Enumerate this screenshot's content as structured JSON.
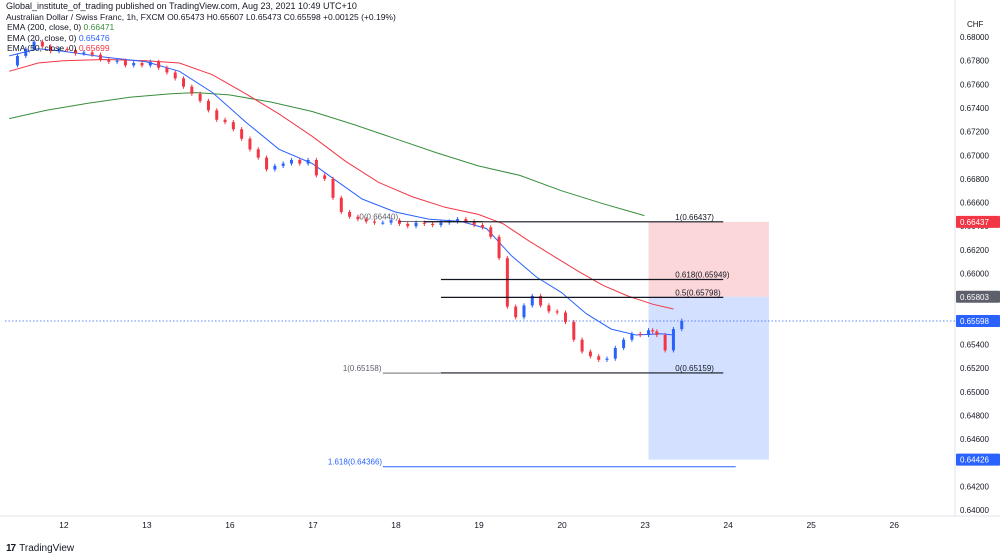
{
  "header": {
    "published_line": "Global_institute_of_trading published on TradingView.com, Aug 23, 2021 10:49 UTC+10",
    "symbol_line": "Australian Dollar / Swiss Franc, 1h, FXCM  O0.65473  H0.65607  L0.65473  C0.65598  +0.00125 (+0.19%)"
  },
  "legend": [
    {
      "label": "EMA (200, close, 0)",
      "value": "0.66471",
      "color": "#388e3c"
    },
    {
      "label": "EMA (20, close, 0)",
      "value": "0.65476",
      "color": "#2962ff"
    },
    {
      "label": "EMA (50, close, 0)",
      "value": "0.65699",
      "color": "#f23645"
    }
  ],
  "footer": {
    "brand": "TradingView"
  },
  "chart_data": {
    "type": "candlestick",
    "currency": "CHF",
    "ylim": [
      0.64,
      0.681
    ],
    "y_ticks": [
      "0.68000",
      "0.67800",
      "0.67600",
      "0.67400",
      "0.67200",
      "0.67000",
      "0.66800",
      "0.66600",
      "0.66400",
      "0.66200",
      "0.66000",
      "0.65800",
      "0.65600",
      "0.65400",
      "0.65200",
      "0.65000",
      "0.64800",
      "0.64600",
      "0.64400",
      "0.64200",
      "0.64000"
    ],
    "x_ticks": [
      {
        "label": "12",
        "x": 12
      },
      {
        "label": "13",
        "x": 13
      },
      {
        "label": "16",
        "x": 14
      },
      {
        "label": "17",
        "x": 15
      },
      {
        "label": "18",
        "x": 16
      },
      {
        "label": "19",
        "x": 17
      },
      {
        "label": "20",
        "x": 18
      },
      {
        "label": "23",
        "x": 19
      },
      {
        "label": "24",
        "x": 20
      },
      {
        "label": "25",
        "x": 21
      },
      {
        "label": "26",
        "x": 22
      }
    ],
    "xlim": [
      11.3,
      22.5
    ],
    "close_series": [
      [
        11.35,
        0.6776
      ],
      [
        11.45,
        0.6784
      ],
      [
        11.55,
        0.679
      ],
      [
        11.65,
        0.6796
      ],
      [
        11.75,
        0.6792
      ],
      [
        11.85,
        0.6788
      ],
      [
        11.95,
        0.679
      ],
      [
        12.05,
        0.6789
      ],
      [
        12.15,
        0.6786
      ],
      [
        12.25,
        0.6787
      ],
      [
        12.35,
        0.6785
      ],
      [
        12.45,
        0.6781
      ],
      [
        12.55,
        0.6779
      ],
      [
        12.65,
        0.678
      ],
      [
        12.75,
        0.6776
      ],
      [
        12.85,
        0.6778
      ],
      [
        12.95,
        0.6776
      ],
      [
        13.05,
        0.6779
      ],
      [
        13.15,
        0.6774
      ],
      [
        13.25,
        0.677
      ],
      [
        13.35,
        0.6765
      ],
      [
        13.45,
        0.6758
      ],
      [
        13.55,
        0.6752
      ],
      [
        13.65,
        0.6746
      ],
      [
        13.75,
        0.6738
      ],
      [
        13.85,
        0.673
      ],
      [
        13.95,
        0.6728
      ],
      [
        14.05,
        0.6722
      ],
      [
        14.15,
        0.6714
      ],
      [
        14.25,
        0.6705
      ],
      [
        14.35,
        0.6698
      ],
      [
        14.45,
        0.6688
      ],
      [
        14.55,
        0.6691
      ],
      [
        14.65,
        0.6693
      ],
      [
        14.75,
        0.6696
      ],
      [
        14.85,
        0.6693
      ],
      [
        14.95,
        0.6696
      ],
      [
        15.05,
        0.6683
      ],
      [
        15.15,
        0.668
      ],
      [
        15.25,
        0.6664
      ],
      [
        15.35,
        0.6652
      ],
      [
        15.45,
        0.6648
      ],
      [
        15.55,
        0.6646
      ],
      [
        15.65,
        0.6644
      ],
      [
        15.75,
        0.6643
      ],
      [
        15.85,
        0.6643
      ],
      [
        15.95,
        0.6645
      ],
      [
        16.05,
        0.6642
      ],
      [
        16.15,
        0.664
      ],
      [
        16.25,
        0.6643
      ],
      [
        16.35,
        0.6642
      ],
      [
        16.45,
        0.6641
      ],
      [
        16.55,
        0.6643
      ],
      [
        16.65,
        0.6644
      ],
      [
        16.75,
        0.6646
      ],
      [
        16.85,
        0.6644
      ],
      [
        16.95,
        0.6641
      ],
      [
        17.05,
        0.6639
      ],
      [
        17.15,
        0.6631
      ],
      [
        17.25,
        0.6613
      ],
      [
        17.35,
        0.6572
      ],
      [
        17.45,
        0.6563
      ],
      [
        17.55,
        0.6573
      ],
      [
        17.65,
        0.6581
      ],
      [
        17.75,
        0.6573
      ],
      [
        17.85,
        0.6568
      ],
      [
        17.95,
        0.6567
      ],
      [
        18.05,
        0.6559
      ],
      [
        18.15,
        0.6544
      ],
      [
        18.25,
        0.6534
      ],
      [
        18.35,
        0.653
      ],
      [
        18.45,
        0.6527
      ],
      [
        18.55,
        0.6528
      ],
      [
        18.65,
        0.6537
      ],
      [
        18.75,
        0.6544
      ],
      [
        18.85,
        0.6549
      ],
      [
        18.95,
        0.6548
      ],
      [
        19.05,
        0.6552
      ],
      [
        19.1,
        0.6551
      ],
      [
        19.15,
        0.6548
      ],
      [
        19.25,
        0.6535
      ],
      [
        19.35,
        0.6553
      ],
      [
        19.45,
        0.656
      ]
    ],
    "ema20_series": [
      [
        11.35,
        0.6784
      ],
      [
        11.7,
        0.679
      ],
      [
        12.0,
        0.6788
      ],
      [
        12.5,
        0.6783
      ],
      [
        13.0,
        0.6779
      ],
      [
        13.4,
        0.6771
      ],
      [
        13.8,
        0.6753
      ],
      [
        14.2,
        0.6728
      ],
      [
        14.6,
        0.6705
      ],
      [
        15.0,
        0.6693
      ],
      [
        15.3,
        0.6678
      ],
      [
        15.6,
        0.6663
      ],
      [
        16.0,
        0.6652
      ],
      [
        16.4,
        0.6646
      ],
      [
        16.8,
        0.6644
      ],
      [
        17.1,
        0.6638
      ],
      [
        17.4,
        0.6615
      ],
      [
        17.7,
        0.6597
      ],
      [
        18.0,
        0.6584
      ],
      [
        18.3,
        0.6566
      ],
      [
        18.6,
        0.6553
      ],
      [
        18.9,
        0.6548
      ],
      [
        19.2,
        0.6549
      ],
      [
        19.35,
        0.6548
      ]
    ],
    "ema50_series": [
      [
        11.35,
        0.6771
      ],
      [
        11.7,
        0.6778
      ],
      [
        12.0,
        0.678
      ],
      [
        12.5,
        0.6781
      ],
      [
        13.0,
        0.678
      ],
      [
        13.4,
        0.6778
      ],
      [
        13.8,
        0.6768
      ],
      [
        14.2,
        0.6752
      ],
      [
        14.6,
        0.6735
      ],
      [
        15.0,
        0.6716
      ],
      [
        15.4,
        0.6695
      ],
      [
        15.8,
        0.6677
      ],
      [
        16.2,
        0.6665
      ],
      [
        16.6,
        0.6656
      ],
      [
        17.0,
        0.665
      ],
      [
        17.3,
        0.6642
      ],
      [
        17.6,
        0.6628
      ],
      [
        17.9,
        0.6615
      ],
      [
        18.2,
        0.6602
      ],
      [
        18.5,
        0.659
      ],
      [
        18.8,
        0.6581
      ],
      [
        19.1,
        0.6574
      ],
      [
        19.35,
        0.657
      ]
    ],
    "ema200_series": [
      [
        11.35,
        0.6731
      ],
      [
        11.8,
        0.6738
      ],
      [
        12.3,
        0.6744
      ],
      [
        12.8,
        0.6749
      ],
      [
        13.3,
        0.6752
      ],
      [
        13.6,
        0.6753
      ],
      [
        14.0,
        0.6751
      ],
      [
        14.5,
        0.6745
      ],
      [
        15.0,
        0.6737
      ],
      [
        15.5,
        0.6726
      ],
      [
        16.0,
        0.6714
      ],
      [
        16.5,
        0.6702
      ],
      [
        17.0,
        0.6691
      ],
      [
        17.5,
        0.6683
      ],
      [
        18.0,
        0.667
      ],
      [
        18.5,
        0.6659
      ],
      [
        19.0,
        0.6649
      ]
    ],
    "fibonacci": {
      "levels": [
        {
          "label": "1(0.66437)",
          "y": 0.66437,
          "x1": 16.35,
          "x2": 19.95
        },
        {
          "label": "0.618(0.65949)",
          "y": 0.65949,
          "x1": 16.55,
          "x2": 19.95
        },
        {
          "label": "0.5(0.65798)",
          "y": 0.65798,
          "x1": 16.55,
          "x2": 19.95
        },
        {
          "label": "0(0.65159)",
          "y": 0.65159,
          "x1": 16.55,
          "x2": 19.95
        }
      ],
      "left_labels": [
        {
          "label": "0(0.66440)",
          "y": 0.6644,
          "x1": 16.05,
          "x2": 17.05
        },
        {
          "label": "1(0.65158)",
          "y": 0.65158,
          "x1": 15.85,
          "x2": 16.55
        }
      ],
      "extension": {
        "label": "1.618(0.64366)",
        "y": 0.64366,
        "x1": 15.85,
        "x2": 20.1
      }
    },
    "position": {
      "entry": 0.65803,
      "stop": 0.66437,
      "target": 0.64426,
      "x1": 19.05,
      "x2": 20.5
    },
    "price_tags": [
      {
        "value": "0.66437",
        "y": 0.66437,
        "bg": "#f23645",
        "fg": "#ffffff"
      },
      {
        "value": "0.65803",
        "y": 0.65803,
        "bg": "#5d606b",
        "fg": "#ffffff"
      },
      {
        "value": "0.65598",
        "y": 0.65598,
        "bg": "#2962ff",
        "fg": "#ffffff"
      },
      {
        "value": "0.64426",
        "y": 0.64426,
        "bg": "#2962ff",
        "fg": "#ffffff"
      }
    ],
    "current_price": 0.65598
  }
}
